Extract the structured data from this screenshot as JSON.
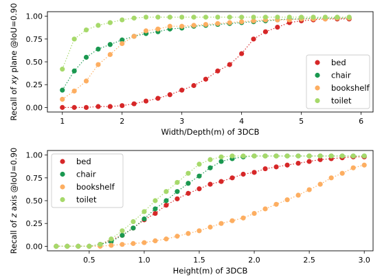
{
  "chart_data": [
    {
      "type": "scatter",
      "xlabel": "Width/Depth(m) of 3DCB",
      "ylabel_parts": [
        "Recall of ",
        "xy",
        " plane @IoU=0.90"
      ],
      "xlim": [
        0.75,
        6.2
      ],
      "ylim": [
        -0.05,
        1.05
      ],
      "xticks": [
        1,
        2,
        3,
        4,
        5,
        6
      ],
      "yticks": [
        0.0,
        0.25,
        0.5,
        0.75,
        1.0
      ],
      "ytick_labels": [
        "0.00",
        "0.25",
        "0.50",
        "0.75",
        "1.00"
      ],
      "legend_position": "center-right",
      "x": [
        1.0,
        1.2,
        1.4,
        1.6,
        1.8,
        2.0,
        2.2,
        2.4,
        2.6,
        2.8,
        3.0,
        3.2,
        3.4,
        3.6,
        3.8,
        4.0,
        4.2,
        4.4,
        4.6,
        4.8,
        5.0,
        5.2,
        5.4,
        5.6,
        5.8
      ],
      "series": [
        {
          "name": "bed",
          "color": "#d62728",
          "values": [
            0.0,
            0.0,
            0.0,
            0.01,
            0.01,
            0.02,
            0.04,
            0.07,
            0.1,
            0.14,
            0.19,
            0.24,
            0.31,
            0.4,
            0.47,
            0.59,
            0.75,
            0.83,
            0.88,
            0.93,
            0.95,
            0.96,
            0.97,
            0.97,
            0.97
          ]
        },
        {
          "name": "chair",
          "color": "#1a9850",
          "values": [
            0.19,
            0.4,
            0.55,
            0.64,
            0.69,
            0.74,
            0.78,
            0.81,
            0.83,
            0.86,
            0.87,
            0.89,
            0.9,
            0.91,
            0.92,
            0.93,
            0.94,
            0.95,
            0.96,
            0.97,
            0.97,
            0.98,
            0.98,
            0.98,
            0.98
          ]
        },
        {
          "name": "bookshelf",
          "color": "#fdae61",
          "values": [
            0.09,
            0.18,
            0.29,
            0.47,
            0.58,
            0.7,
            0.78,
            0.84,
            0.86,
            0.89,
            0.89,
            0.9,
            0.91,
            0.92,
            0.93,
            0.94,
            0.95,
            0.96,
            0.96,
            0.96,
            0.97,
            0.97,
            0.97,
            0.98,
            0.98
          ]
        },
        {
          "name": "toilet",
          "color": "#a6d96a",
          "values": [
            0.42,
            0.75,
            0.85,
            0.9,
            0.93,
            0.96,
            0.98,
            0.99,
            0.99,
            0.99,
            0.99,
            0.99,
            0.99,
            0.99,
            0.99,
            0.99,
            0.99,
            0.99,
            0.99,
            0.99,
            0.99,
            0.99,
            0.99,
            0.99,
            0.99
          ]
        }
      ]
    },
    {
      "type": "scatter",
      "xlabel": "Height(m) of 3DCB",
      "ylabel_parts": [
        "Recall of ",
        "z",
        " axis @IoU=0.90"
      ],
      "xlim": [
        0.12,
        3.08
      ],
      "ylim": [
        -0.05,
        1.05
      ],
      "xticks": [
        0.5,
        1.0,
        1.5,
        2.0,
        2.5,
        3.0
      ],
      "xtick_labels": [
        "0.5",
        "1.0",
        "1.5",
        "2.0",
        "2.5",
        "3.0"
      ],
      "yticks": [
        0.0,
        0.25,
        0.5,
        0.75,
        1.0
      ],
      "ytick_labels": [
        "0.00",
        "0.25",
        "0.50",
        "0.75",
        "1.00"
      ],
      "legend_position": "upper-left",
      "x": [
        0.2,
        0.3,
        0.4,
        0.5,
        0.6,
        0.7,
        0.8,
        0.9,
        1.0,
        1.1,
        1.2,
        1.3,
        1.4,
        1.5,
        1.6,
        1.7,
        1.8,
        1.9,
        2.0,
        2.1,
        2.2,
        2.3,
        2.4,
        2.5,
        2.6,
        2.7,
        2.8,
        2.9,
        3.0
      ],
      "series": [
        {
          "name": "bed",
          "color": "#d62728",
          "values": [
            0.0,
            0.0,
            0.0,
            0.0,
            0.02,
            0.07,
            0.12,
            0.2,
            0.29,
            0.36,
            0.45,
            0.52,
            0.58,
            0.63,
            0.68,
            0.71,
            0.75,
            0.79,
            0.81,
            0.85,
            0.87,
            0.89,
            0.91,
            0.93,
            0.95,
            0.96,
            0.97,
            0.98,
            0.98
          ]
        },
        {
          "name": "chair",
          "color": "#1a9850",
          "values": [
            0.0,
            0.0,
            0.0,
            0.0,
            0.02,
            0.05,
            0.12,
            0.2,
            0.3,
            0.41,
            0.5,
            0.6,
            0.69,
            0.77,
            0.86,
            0.93,
            0.96,
            0.98,
            0.99,
            0.99,
            0.99,
            0.99,
            0.99,
            0.99,
            0.99,
            0.99,
            0.99,
            0.99,
            0.99
          ]
        },
        {
          "name": "bookshelf",
          "color": "#fdae61",
          "values": [
            0.0,
            0.0,
            0.0,
            0.0,
            0.0,
            0.01,
            0.02,
            0.03,
            0.04,
            0.06,
            0.08,
            0.11,
            0.14,
            0.17,
            0.21,
            0.25,
            0.28,
            0.31,
            0.36,
            0.41,
            0.46,
            0.51,
            0.56,
            0.62,
            0.68,
            0.75,
            0.8,
            0.86,
            0.89
          ]
        },
        {
          "name": "toilet",
          "color": "#a6d96a",
          "values": [
            0.0,
            0.0,
            0.0,
            0.0,
            0.02,
            0.08,
            0.17,
            0.27,
            0.38,
            0.5,
            0.6,
            0.7,
            0.8,
            0.9,
            0.95,
            0.98,
            0.99,
            0.99,
            0.99,
            0.99,
            0.99,
            0.99,
            0.99,
            0.99,
            0.99,
            0.99,
            0.99,
            0.99,
            0.99
          ]
        }
      ]
    }
  ]
}
